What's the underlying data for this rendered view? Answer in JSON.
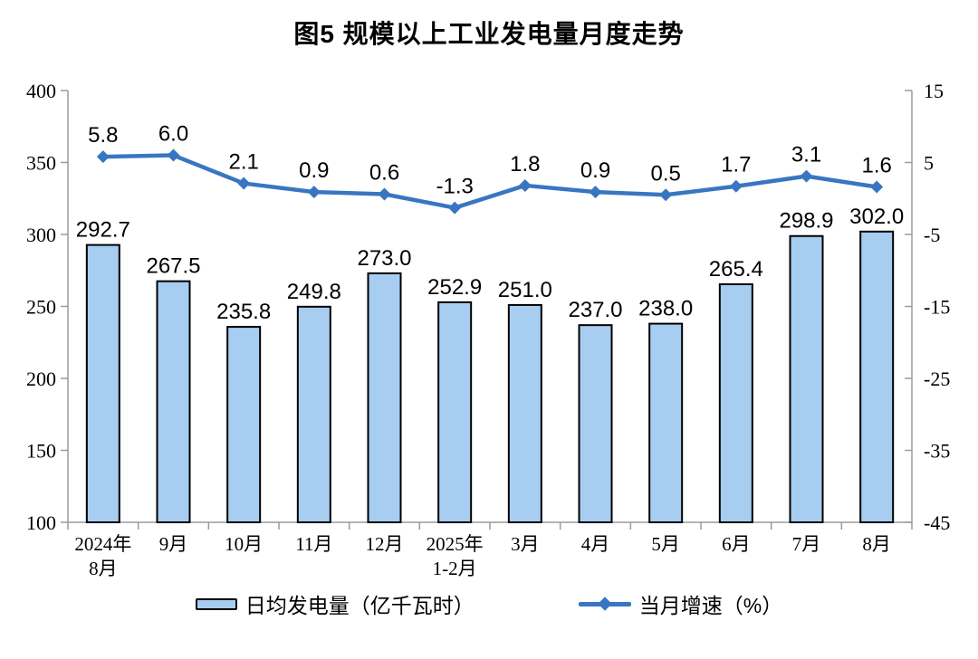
{
  "title": "图5 规模以上工业发电量月度走势",
  "colors": {
    "bar_fill": "#A7CDF1",
    "bar_stroke": "#000000",
    "line": "#3876C2",
    "axis": "#9B9B9B",
    "text": "#000000",
    "background": "#FFFFFF"
  },
  "legend": {
    "bar_label": "日均发电量（亿千瓦时）",
    "line_label": "当月增速（%）"
  },
  "chart_data": {
    "type": "combo-bar-line",
    "title": "图5 规模以上工业发电量月度走势",
    "categories": [
      "2024年\n8月",
      "9月",
      "10月",
      "11月",
      "12月",
      "2025年\n1-2月",
      "3月",
      "4月",
      "5月",
      "6月",
      "7月",
      "8月"
    ],
    "series": [
      {
        "name": "日均发电量（亿千瓦时）",
        "type": "bar",
        "axis": "left",
        "values": [
          292.7,
          267.5,
          235.8,
          249.8,
          273.0,
          252.9,
          251.0,
          237.0,
          238.0,
          265.4,
          298.9,
          302.0
        ],
        "labels": [
          "292.7",
          "267.5",
          "235.8",
          "249.8",
          "273.0",
          "252.9",
          "251.0",
          "237.0",
          "238.0",
          "265.4",
          "298.9",
          "302.0"
        ]
      },
      {
        "name": "当月增速（%）",
        "type": "line",
        "axis": "right",
        "values": [
          5.8,
          6.0,
          2.1,
          0.9,
          0.6,
          -1.3,
          1.8,
          0.9,
          0.5,
          1.7,
          3.1,
          1.6
        ],
        "labels": [
          "5.8",
          "6.0",
          "2.1",
          "0.9",
          "0.6",
          "-1.3",
          "1.8",
          "0.9",
          "0.5",
          "1.7",
          "3.1",
          "1.6"
        ]
      }
    ],
    "left_axis": {
      "min": 100,
      "max": 400,
      "step": 50,
      "ticks": [
        400,
        350,
        300,
        250,
        200,
        150,
        100
      ]
    },
    "right_axis": {
      "min": -45,
      "max": 15,
      "step": 10,
      "ticks": [
        15,
        5,
        -5,
        -15,
        -25,
        -35,
        -45
      ]
    },
    "grid": false,
    "legend_position": "bottom",
    "data_labels": true
  }
}
